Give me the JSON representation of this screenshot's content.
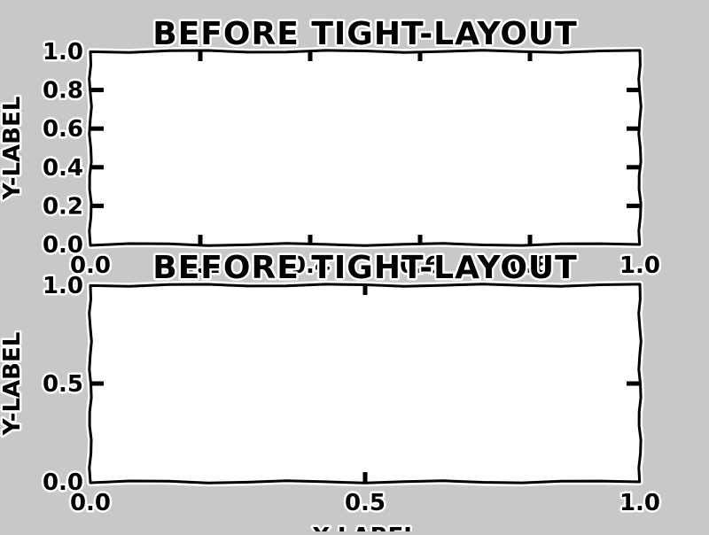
{
  "chart_data": [
    {
      "type": "line",
      "title": "BEFORE TIGHT-LAYOUT",
      "xlabel": "",
      "ylabel": "Y-LABEL",
      "xlim": [
        0.0,
        1.0
      ],
      "ylim": [
        0.0,
        1.0
      ],
      "xticks": [
        0.0,
        0.2,
        0.4,
        0.6,
        0.8,
        1.0
      ],
      "xtick_labels": [
        "0.0",
        "0.2",
        "0.4",
        "0.6",
        "0.8",
        "1.0"
      ],
      "yticks": [
        0.0,
        0.2,
        0.4,
        0.6,
        0.8,
        1.0
      ],
      "ytick_labels": [
        "0.0",
        "0.2",
        "0.4",
        "0.6",
        "0.8",
        "1.0"
      ],
      "series": [],
      "grid": false,
      "style": "xkcd"
    },
    {
      "type": "line",
      "title": "BEFORE TIGHT-LAYOUT",
      "xlabel": "X-LABEL",
      "ylabel": "Y-LABEL",
      "xlim": [
        0.0,
        1.0
      ],
      "ylim": [
        0.0,
        1.0
      ],
      "xticks": [
        0.0,
        0.5,
        1.0
      ],
      "xtick_labels": [
        "0.0",
        "0.5",
        "1.0"
      ],
      "yticks": [
        0.0,
        0.5,
        1.0
      ],
      "ytick_labels": [
        "0.0",
        "0.5",
        "1.0"
      ],
      "series": [],
      "grid": false,
      "style": "xkcd"
    }
  ]
}
